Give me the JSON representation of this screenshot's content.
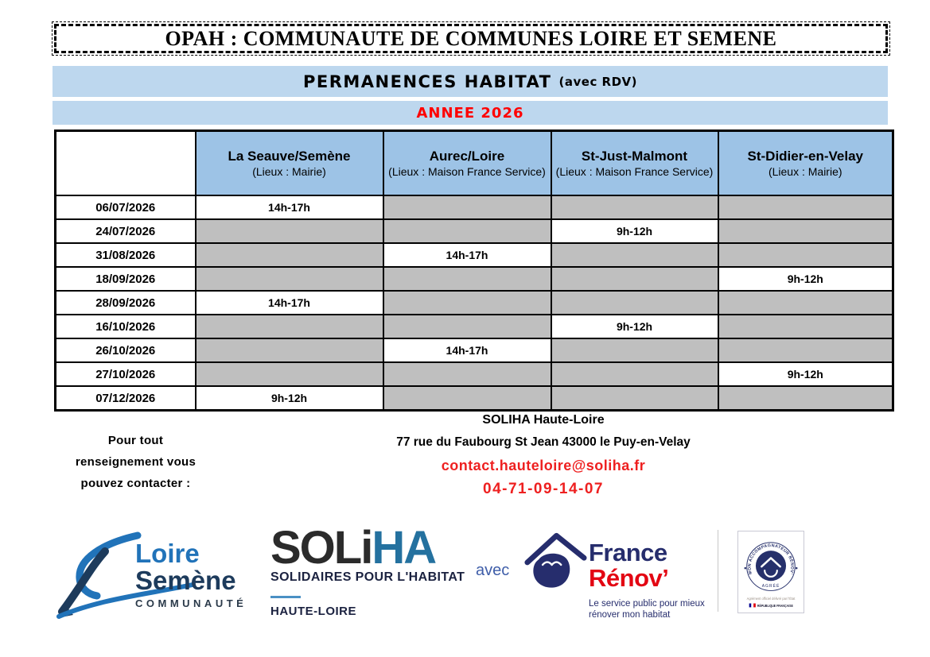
{
  "title_box": {
    "text": "OPAH : COMMUNAUTE DE COMMUNES LOIRE ET SEMENE"
  },
  "banner": {
    "title": "PERMANENCES HABITAT",
    "suffix": "(avec RDV)",
    "year": "ANNEE 2026",
    "band_bg": "#BDD7EE",
    "year_color": "#FF0000"
  },
  "schedule": {
    "header_bg": "#9DC3E6",
    "empty_cell_bg": "#BFBFBF",
    "columns": [
      {
        "name": "",
        "location": ""
      },
      {
        "name": "La Seauve/Semène",
        "location": "(Lieux : Mairie)"
      },
      {
        "name": "Aurec/Loire",
        "location": "(Lieux : Maison France Service)"
      },
      {
        "name": "St-Just-Malmont",
        "location": "(Lieux : Maison France Service)"
      },
      {
        "name": "St-Didier-en-Velay",
        "location": "(Lieux : Mairie)"
      }
    ],
    "rows": [
      {
        "date": "06/07/2026",
        "times": [
          "14h-17h",
          "",
          "",
          ""
        ]
      },
      {
        "date": "24/07/2026",
        "times": [
          "",
          "",
          "9h-12h",
          ""
        ]
      },
      {
        "date": "31/08/2026",
        "times": [
          "",
          "14h-17h",
          "",
          ""
        ]
      },
      {
        "date": "18/09/2026",
        "times": [
          "",
          "",
          "",
          "9h-12h"
        ]
      },
      {
        "date": "28/09/2026",
        "times": [
          "14h-17h",
          "",
          "",
          ""
        ]
      },
      {
        "date": "16/10/2026",
        "times": [
          "",
          "",
          "9h-12h",
          ""
        ]
      },
      {
        "date": "26/10/2026",
        "times": [
          "",
          "14h-17h",
          "",
          ""
        ]
      },
      {
        "date": "27/10/2026",
        "times": [
          "",
          "",
          "",
          "9h-12h"
        ]
      },
      {
        "date": "07/12/2026",
        "times": [
          "9h-12h",
          "",
          "",
          ""
        ]
      }
    ]
  },
  "contact": {
    "intro_lines": {
      "0": "Pour tout",
      "1": "renseignement vous",
      "2": "pouvez contacter :"
    },
    "org": "SOLIHA Haute-Loire",
    "address": "77 rue du Faubourg St Jean 43000 le Puy-en-Velay",
    "email": "contact.hauteloire@soliha.fr",
    "phone": "04-71-09-14-07",
    "accent_red": "#EE2020"
  },
  "logos": {
    "loire_semene": {
      "line1": "Loire",
      "line2": "Semène",
      "line3": "COMMUNAUTÉ",
      "blue": "#2173B9",
      "navy": "#1D3B5C"
    },
    "soliha": {
      "word_black": "SOLi",
      "word_blue": "HA",
      "tagline": "SOLIDAIRES POUR L'HABITAT",
      "region": "HAUTE-LOIRE",
      "blue": "#24719F"
    },
    "avec_label": "avec",
    "france_renov": {
      "line1": "France",
      "line2": "Rénov’",
      "tagline1": "Le service public pour mieux",
      "tagline2": "rénover mon habitat",
      "navy": "#262D6D",
      "red": "#E30613"
    },
    "badge": {
      "seal_text": "MON ACCOMPAGNATEUR RÉNOV'",
      "agree": "AGRÉÉ",
      "line1": "Agrément officiel délivré par l'État",
      "line2": "RÉPUBLIQUE FRANÇAISE"
    }
  }
}
